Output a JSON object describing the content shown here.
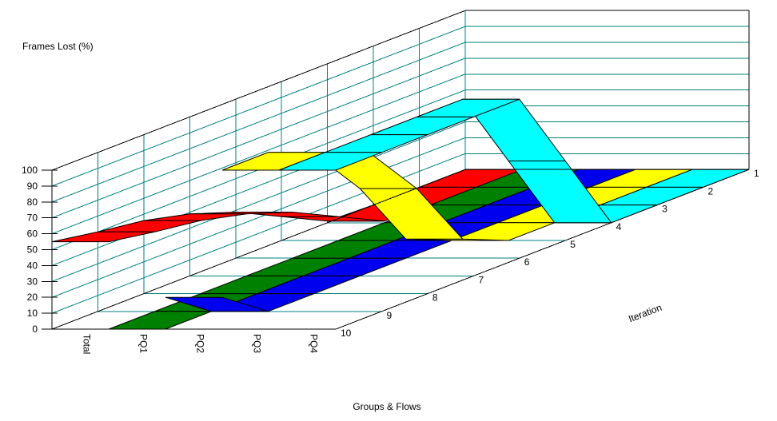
{
  "chart_data": {
    "type": "area",
    "variant": "3d-ribbon",
    "title": "",
    "value_axis": {
      "title": "Frames Lost (%)",
      "min": 0,
      "max": 100,
      "tick_step": 10,
      "ticks": [
        0,
        10,
        20,
        30,
        40,
        50,
        60,
        70,
        80,
        90,
        100
      ]
    },
    "category_axis": {
      "title": "Groups & Flows",
      "categories": [
        "Total",
        "PQ1",
        "PQ2",
        "PQ3",
        "PQ4"
      ]
    },
    "depth_axis": {
      "title": "Iteration",
      "ticks": [
        1,
        2,
        3,
        4,
        5,
        6,
        7,
        8,
        9,
        10
      ],
      "orientation": "iteration 1 at back, iteration 10 at front"
    },
    "grid": true,
    "grid_color": "#008080",
    "outline_color": "#000000",
    "background_color": "#ffffff",
    "legend_position": "none",
    "x": [
      1,
      2,
      3,
      4,
      5,
      6,
      7,
      8,
      9,
      10
    ],
    "series": [
      {
        "name": "Total",
        "color": "#FF0000",
        "values": [
          0,
          0,
          0,
          1,
          15,
          29,
          39,
          46,
          50,
          55
        ]
      },
      {
        "name": "PQ1",
        "color": "#008000",
        "values": [
          0,
          0,
          0,
          0,
          0,
          0,
          0,
          0,
          0,
          0
        ]
      },
      {
        "name": "PQ2",
        "color": "#0000EE",
        "values": [
          0,
          0,
          0,
          0,
          0,
          0,
          0,
          0,
          0,
          20
        ]
      },
      {
        "name": "PQ3",
        "color": "#FFFF00",
        "values": [
          0,
          0,
          0,
          0,
          0,
          12,
          55,
          88,
          100,
          100
        ]
      },
      {
        "name": "PQ4",
        "color": "#00FFFF",
        "values": [
          0,
          0,
          0,
          0,
          50,
          100,
          100,
          100,
          100,
          100
        ]
      }
    ]
  }
}
